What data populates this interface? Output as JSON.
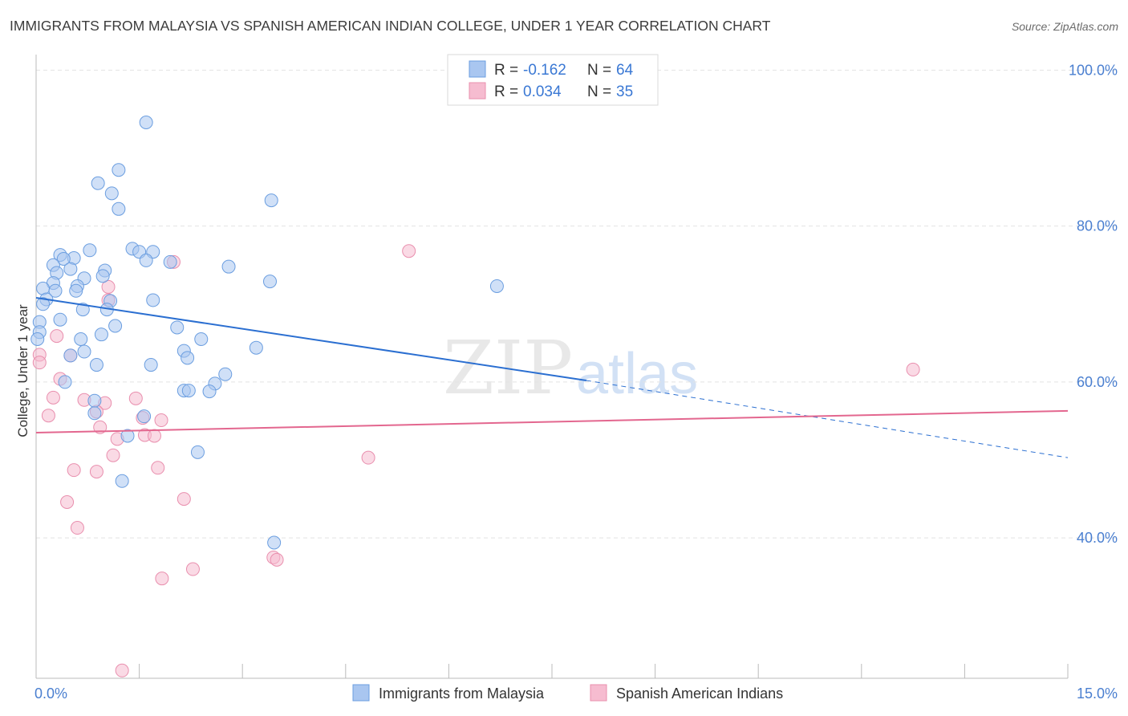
{
  "title": "IMMIGRANTS FROM MALAYSIA VS SPANISH AMERICAN INDIAN COLLEGE, UNDER 1 YEAR CORRELATION CHART",
  "source": "Source: ZipAtlas.com",
  "watermark": {
    "zip": "ZIP",
    "atlas": "atlas"
  },
  "colors": {
    "blue_fill": "#a9c6f0",
    "blue_stroke": "#6b9ee0",
    "blue_line": "#2b6fd1",
    "pink_fill": "#f6bcd0",
    "pink_stroke": "#e98fae",
    "pink_line": "#e3678f",
    "grid": "#e3e3e3",
    "tick_text": "#4a7fd0"
  },
  "legend": {
    "rows": [
      {
        "r_label": "R = ",
        "r_value": "-0.162",
        "n_label": "N = ",
        "n_value": "64"
      },
      {
        "r_label": "R = ",
        "r_value": "0.034",
        "n_label": "N = ",
        "n_value": "35"
      }
    ]
  },
  "chart_data": {
    "type": "scatter",
    "title": "IMMIGRANTS FROM MALAYSIA VS SPANISH AMERICAN INDIAN COLLEGE, UNDER 1 YEAR CORRELATION CHART",
    "xlabel": "",
    "ylabel": "College, Under 1 year",
    "xlim": [
      0,
      15
    ],
    "ylim": [
      22,
      102
    ],
    "x_tick_labels": [
      "0.0%",
      "15.0%"
    ],
    "y_ticks": [
      40,
      60,
      80,
      100
    ],
    "y_tick_labels": [
      "40.0%",
      "60.0%",
      "80.0%",
      "100.0%"
    ],
    "grid": true,
    "legend_position": "top-center",
    "series": [
      {
        "name": "Immigrants from Malaysia",
        "color": "blue",
        "r": -0.162,
        "n": 64,
        "trend": {
          "x0": 0,
          "y0": 70.8,
          "x1": 8.0,
          "y1": 60.2,
          "dashed_to_x": 15.0,
          "dashed_to_y": 50.3
        },
        "points": [
          [
            1.6,
            93.3
          ],
          [
            1.2,
            87.2
          ],
          [
            0.9,
            85.5
          ],
          [
            1.1,
            84.2
          ],
          [
            1.2,
            82.2
          ],
          [
            3.42,
            83.3
          ],
          [
            1.4,
            77.1
          ],
          [
            1.5,
            76.7
          ],
          [
            1.7,
            76.7
          ],
          [
            1.6,
            75.6
          ],
          [
            0.78,
            76.9
          ],
          [
            0.35,
            76.3
          ],
          [
            0.55,
            75.9
          ],
          [
            0.4,
            75.8
          ],
          [
            0.5,
            74.5
          ],
          [
            0.25,
            75.0
          ],
          [
            0.3,
            74.0
          ],
          [
            1.0,
            74.3
          ],
          [
            1.95,
            75.4
          ],
          [
            2.8,
            74.8
          ],
          [
            0.7,
            73.3
          ],
          [
            0.97,
            73.6
          ],
          [
            0.25,
            72.7
          ],
          [
            0.6,
            72.3
          ],
          [
            0.58,
            71.7
          ],
          [
            0.1,
            72.0
          ],
          [
            0.28,
            71.7
          ],
          [
            3.4,
            72.9
          ],
          [
            6.7,
            72.3
          ],
          [
            0.15,
            70.6
          ],
          [
            1.08,
            70.4
          ],
          [
            1.7,
            70.5
          ],
          [
            0.1,
            70.0
          ],
          [
            0.68,
            69.3
          ],
          [
            1.03,
            69.3
          ],
          [
            0.35,
            68.0
          ],
          [
            0.05,
            67.7
          ],
          [
            1.15,
            67.2
          ],
          [
            2.05,
            67.0
          ],
          [
            0.05,
            66.4
          ],
          [
            0.95,
            66.1
          ],
          [
            0.02,
            65.5
          ],
          [
            0.65,
            65.5
          ],
          [
            2.4,
            65.5
          ],
          [
            3.2,
            64.4
          ],
          [
            0.7,
            63.9
          ],
          [
            2.15,
            64.0
          ],
          [
            0.5,
            63.4
          ],
          [
            2.2,
            63.1
          ],
          [
            0.88,
            62.2
          ],
          [
            1.67,
            62.2
          ],
          [
            2.75,
            61.0
          ],
          [
            0.42,
            60.0
          ],
          [
            2.6,
            59.8
          ],
          [
            2.15,
            58.9
          ],
          [
            2.22,
            58.9
          ],
          [
            2.52,
            58.8
          ],
          [
            0.85,
            57.6
          ],
          [
            0.85,
            56.0
          ],
          [
            1.57,
            55.6
          ],
          [
            1.33,
            53.1
          ],
          [
            2.35,
            51.0
          ],
          [
            1.25,
            47.3
          ],
          [
            3.46,
            39.4
          ]
        ]
      },
      {
        "name": "Spanish American Indians",
        "color": "pink",
        "r": 0.034,
        "n": 35,
        "trend": {
          "x0": 0,
          "y0": 53.5,
          "x1": 15.0,
          "y1": 56.3
        },
        "points": [
          [
            5.42,
            76.8
          ],
          [
            2.0,
            75.4
          ],
          [
            1.05,
            72.2
          ],
          [
            1.05,
            70.5
          ],
          [
            0.3,
            65.9
          ],
          [
            0.5,
            63.4
          ],
          [
            0.05,
            63.5
          ],
          [
            0.05,
            62.5
          ],
          [
            12.75,
            61.6
          ],
          [
            0.35,
            60.4
          ],
          [
            0.25,
            58.0
          ],
          [
            1.45,
            57.9
          ],
          [
            0.7,
            57.7
          ],
          [
            1.0,
            57.3
          ],
          [
            0.88,
            56.2
          ],
          [
            0.18,
            55.7
          ],
          [
            1.55,
            55.4
          ],
          [
            1.82,
            55.1
          ],
          [
            0.93,
            54.2
          ],
          [
            1.58,
            53.2
          ],
          [
            1.72,
            53.1
          ],
          [
            1.18,
            52.7
          ],
          [
            1.12,
            50.6
          ],
          [
            4.83,
            50.3
          ],
          [
            1.77,
            49.0
          ],
          [
            0.55,
            48.7
          ],
          [
            0.88,
            48.5
          ],
          [
            2.15,
            45.0
          ],
          [
            0.45,
            44.6
          ],
          [
            0.6,
            41.3
          ],
          [
            3.45,
            37.5
          ],
          [
            3.5,
            37.2
          ],
          [
            2.28,
            36.0
          ],
          [
            1.83,
            34.8
          ],
          [
            1.25,
            23.0
          ]
        ]
      }
    ]
  }
}
